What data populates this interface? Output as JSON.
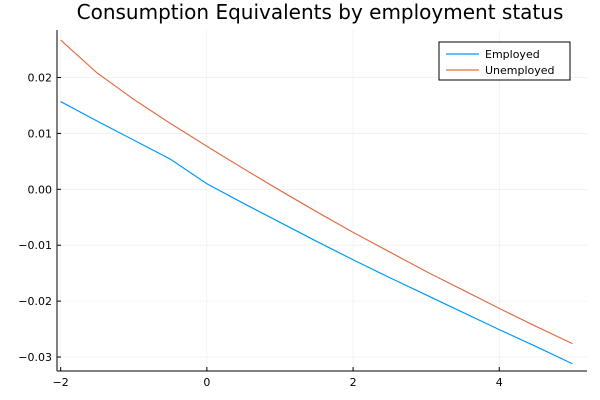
{
  "chart_data": {
    "type": "line",
    "title": "Consumption Equivalents by employment status",
    "xlabel": "",
    "ylabel": "",
    "xlim": [
      -2.05,
      5.2
    ],
    "ylim": [
      -0.0325,
      0.0285
    ],
    "xticks": [
      -2,
      0,
      2,
      4
    ],
    "xtick_labels": [
      "−2",
      "0",
      "2",
      "4"
    ],
    "yticks": [
      -0.03,
      -0.02,
      -0.01,
      0.0,
      0.01,
      0.02
    ],
    "ytick_labels": [
      "−0.03",
      "−0.02",
      "−0.01",
      "0.00",
      "0.01",
      "0.02"
    ],
    "grid": true,
    "legend_position": "top-right",
    "series": [
      {
        "name": "Employed",
        "color": "#009af9",
        "x": [
          -2,
          -1.5,
          -1,
          -0.5,
          0,
          0.5,
          1,
          1.5,
          2,
          2.5,
          3,
          3.5,
          4,
          4.5,
          5
        ],
        "y": [
          0.0157,
          0.0122,
          0.0088,
          0.0054,
          0.001,
          -0.0025,
          -0.0059,
          -0.0093,
          -0.0126,
          -0.0158,
          -0.0189,
          -0.022,
          -0.0251,
          -0.0281,
          -0.0312
        ]
      },
      {
        "name": "Unemployed",
        "color": "#e26f46",
        "x": [
          -2,
          -1.5,
          -1,
          -0.5,
          0,
          0.5,
          1,
          1.5,
          2,
          2.5,
          3,
          3.5,
          4,
          4.5,
          5
        ],
        "y": [
          0.0267,
          0.0208,
          0.0161,
          0.0118,
          0.0077,
          0.0037,
          -0.0002,
          -0.004,
          -0.0077,
          -0.0112,
          -0.0147,
          -0.018,
          -0.0213,
          -0.0245,
          -0.0276
        ]
      }
    ]
  }
}
